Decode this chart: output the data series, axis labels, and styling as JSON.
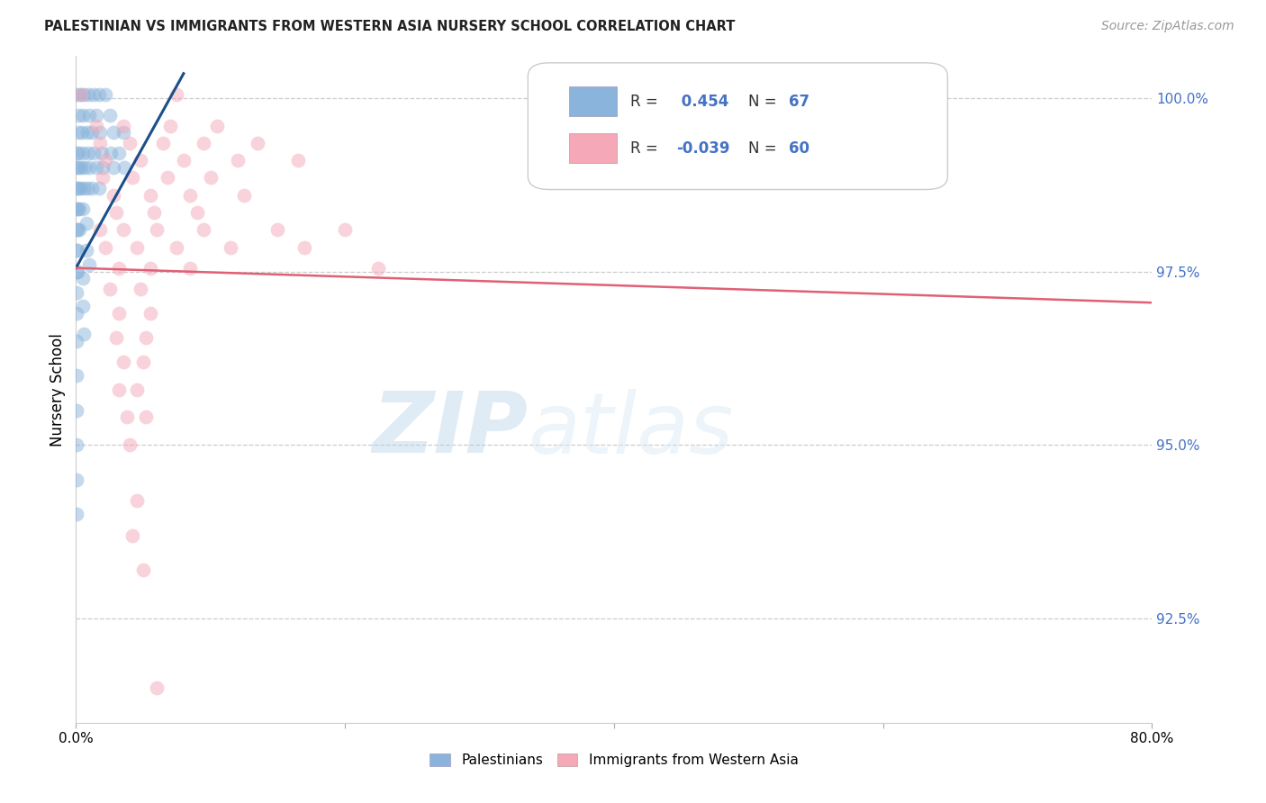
{
  "title": "PALESTINIAN VS IMMIGRANTS FROM WESTERN ASIA NURSERY SCHOOL CORRELATION CHART",
  "source": "Source: ZipAtlas.com",
  "ylabel": "Nursery School",
  "blue_label": "Palestinians",
  "pink_label": "Immigrants from Western Asia",
  "blue_R": 0.454,
  "blue_N": 67,
  "pink_R": -0.039,
  "pink_N": 60,
  "blue_color": "#8ab4db",
  "pink_color": "#f4a8b8",
  "blue_line_color": "#1a4f8a",
  "pink_line_color": "#e06075",
  "watermark_zip": "ZIP",
  "watermark_atlas": "atlas",
  "xmin": 0.0,
  "xmax": 80.0,
  "ymin": 91.0,
  "ymax": 100.6,
  "yticks": [
    92.5,
    95.0,
    97.5,
    100.0
  ],
  "ytick_labels": [
    "92.5%",
    "95.0%",
    "97.5%",
    "100.0%"
  ],
  "xtick_positions": [
    0,
    20,
    40,
    60,
    80
  ],
  "xtick_labels": [
    "0.0%",
    "",
    "",
    "",
    "80.0%"
  ],
  "blue_trend_x": [
    0.0,
    8.0
  ],
  "blue_trend_y": [
    97.55,
    100.35
  ],
  "pink_trend_x": [
    0.0,
    80.0
  ],
  "pink_trend_y": [
    97.55,
    97.05
  ],
  "blue_points": [
    [
      0.05,
      100.05
    ],
    [
      0.3,
      100.05
    ],
    [
      0.55,
      100.05
    ],
    [
      0.9,
      100.05
    ],
    [
      1.3,
      100.05
    ],
    [
      1.7,
      100.05
    ],
    [
      2.2,
      100.05
    ],
    [
      0.15,
      99.75
    ],
    [
      0.5,
      99.75
    ],
    [
      1.0,
      99.75
    ],
    [
      1.5,
      99.75
    ],
    [
      2.5,
      99.75
    ],
    [
      0.15,
      99.5
    ],
    [
      0.45,
      99.5
    ],
    [
      0.85,
      99.5
    ],
    [
      1.2,
      99.5
    ],
    [
      1.8,
      99.5
    ],
    [
      2.8,
      99.5
    ],
    [
      3.5,
      99.5
    ],
    [
      0.05,
      99.2
    ],
    [
      0.2,
      99.2
    ],
    [
      0.5,
      99.2
    ],
    [
      0.9,
      99.2
    ],
    [
      1.3,
      99.2
    ],
    [
      1.9,
      99.2
    ],
    [
      2.6,
      99.2
    ],
    [
      3.2,
      99.2
    ],
    [
      0.05,
      99.0
    ],
    [
      0.15,
      99.0
    ],
    [
      0.35,
      99.0
    ],
    [
      0.65,
      99.0
    ],
    [
      1.0,
      99.0
    ],
    [
      1.5,
      99.0
    ],
    [
      2.0,
      99.0
    ],
    [
      2.8,
      99.0
    ],
    [
      3.6,
      99.0
    ],
    [
      0.05,
      98.7
    ],
    [
      0.15,
      98.7
    ],
    [
      0.3,
      98.7
    ],
    [
      0.55,
      98.7
    ],
    [
      0.85,
      98.7
    ],
    [
      1.2,
      98.7
    ],
    [
      1.7,
      98.7
    ],
    [
      0.05,
      98.4
    ],
    [
      0.12,
      98.4
    ],
    [
      0.25,
      98.4
    ],
    [
      0.5,
      98.4
    ],
    [
      0.05,
      98.1
    ],
    [
      0.12,
      98.1
    ],
    [
      0.25,
      98.1
    ],
    [
      0.05,
      97.8
    ],
    [
      0.12,
      97.8
    ],
    [
      0.05,
      97.5
    ],
    [
      0.1,
      97.5
    ],
    [
      0.05,
      97.2
    ],
    [
      0.05,
      96.9
    ],
    [
      0.05,
      96.5
    ],
    [
      0.05,
      96.0
    ],
    [
      0.05,
      95.5
    ],
    [
      0.05,
      95.0
    ],
    [
      0.05,
      94.5
    ],
    [
      0.05,
      94.0
    ],
    [
      0.5,
      97.4
    ],
    [
      0.5,
      97.0
    ],
    [
      0.6,
      96.6
    ],
    [
      0.8,
      98.2
    ],
    [
      0.8,
      97.8
    ],
    [
      1.0,
      97.6
    ]
  ],
  "pink_points": [
    [
      0.4,
      100.05
    ],
    [
      7.5,
      100.05
    ],
    [
      37.0,
      100.05
    ],
    [
      1.5,
      99.6
    ],
    [
      3.5,
      99.6
    ],
    [
      7.0,
      99.6
    ],
    [
      10.5,
      99.6
    ],
    [
      1.8,
      99.35
    ],
    [
      4.0,
      99.35
    ],
    [
      6.5,
      99.35
    ],
    [
      9.5,
      99.35
    ],
    [
      13.5,
      99.35
    ],
    [
      2.2,
      99.1
    ],
    [
      4.8,
      99.1
    ],
    [
      8.0,
      99.1
    ],
    [
      12.0,
      99.1
    ],
    [
      16.5,
      99.1
    ],
    [
      2.0,
      98.85
    ],
    [
      4.2,
      98.85
    ],
    [
      6.8,
      98.85
    ],
    [
      10.0,
      98.85
    ],
    [
      2.8,
      98.6
    ],
    [
      5.5,
      98.6
    ],
    [
      8.5,
      98.6
    ],
    [
      12.5,
      98.6
    ],
    [
      3.0,
      98.35
    ],
    [
      5.8,
      98.35
    ],
    [
      9.0,
      98.35
    ],
    [
      1.8,
      98.1
    ],
    [
      3.5,
      98.1
    ],
    [
      6.0,
      98.1
    ],
    [
      9.5,
      98.1
    ],
    [
      15.0,
      98.1
    ],
    [
      20.0,
      98.1
    ],
    [
      2.2,
      97.85
    ],
    [
      4.5,
      97.85
    ],
    [
      7.5,
      97.85
    ],
    [
      11.5,
      97.85
    ],
    [
      17.0,
      97.85
    ],
    [
      3.2,
      97.55
    ],
    [
      5.5,
      97.55
    ],
    [
      8.5,
      97.55
    ],
    [
      22.5,
      97.55
    ],
    [
      2.5,
      97.25
    ],
    [
      4.8,
      97.25
    ],
    [
      3.2,
      96.9
    ],
    [
      5.5,
      96.9
    ],
    [
      3.0,
      96.55
    ],
    [
      5.2,
      96.55
    ],
    [
      3.5,
      96.2
    ],
    [
      5.0,
      96.2
    ],
    [
      3.2,
      95.8
    ],
    [
      4.5,
      95.8
    ],
    [
      3.8,
      95.4
    ],
    [
      5.2,
      95.4
    ],
    [
      4.0,
      95.0
    ],
    [
      4.5,
      94.2
    ],
    [
      4.2,
      93.7
    ],
    [
      5.0,
      93.2
    ],
    [
      6.0,
      91.5
    ]
  ]
}
